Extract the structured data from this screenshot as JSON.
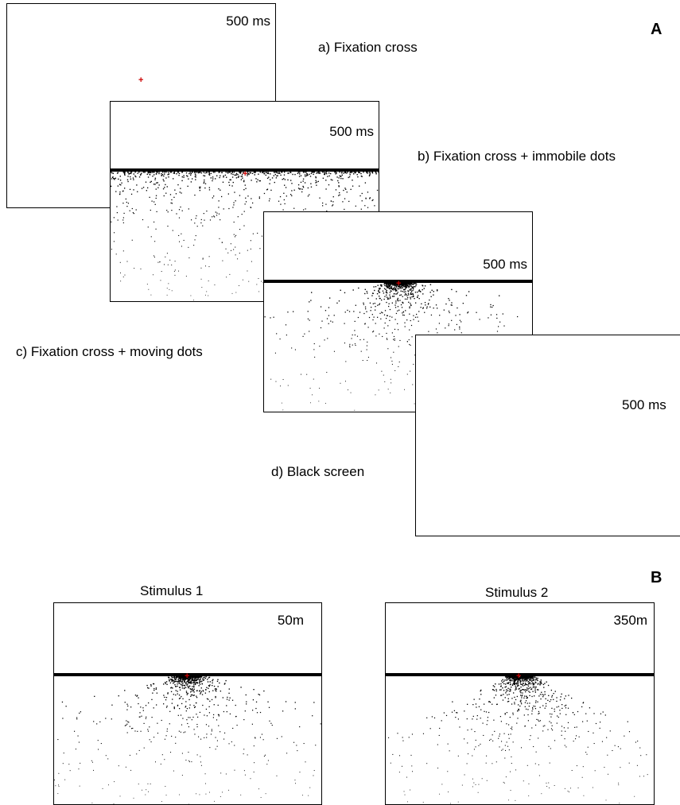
{
  "panel_a": {
    "label": "A",
    "screens": [
      {
        "caption": "a) Fixation cross",
        "duration": "500 ms",
        "content": "fixation-cross"
      },
      {
        "caption": "b) Fixation cross + immobile dots",
        "duration": "500 ms",
        "content": "immobile-dots"
      },
      {
        "caption": "c) Fixation cross + moving dots",
        "duration": "500 ms",
        "content": "moving-dots"
      },
      {
        "caption": "d) Black screen",
        "duration": "500 ms",
        "content": "blank"
      }
    ]
  },
  "panel_b": {
    "label": "B",
    "stimuli": [
      {
        "title": "Stimulus 1",
        "distance": "50m"
      },
      {
        "title": "Stimulus 2",
        "distance": "350m"
      }
    ]
  },
  "colors": {
    "dots": "#000000",
    "fixation_cross": "#cc0000",
    "frame_border": "#000000"
  }
}
